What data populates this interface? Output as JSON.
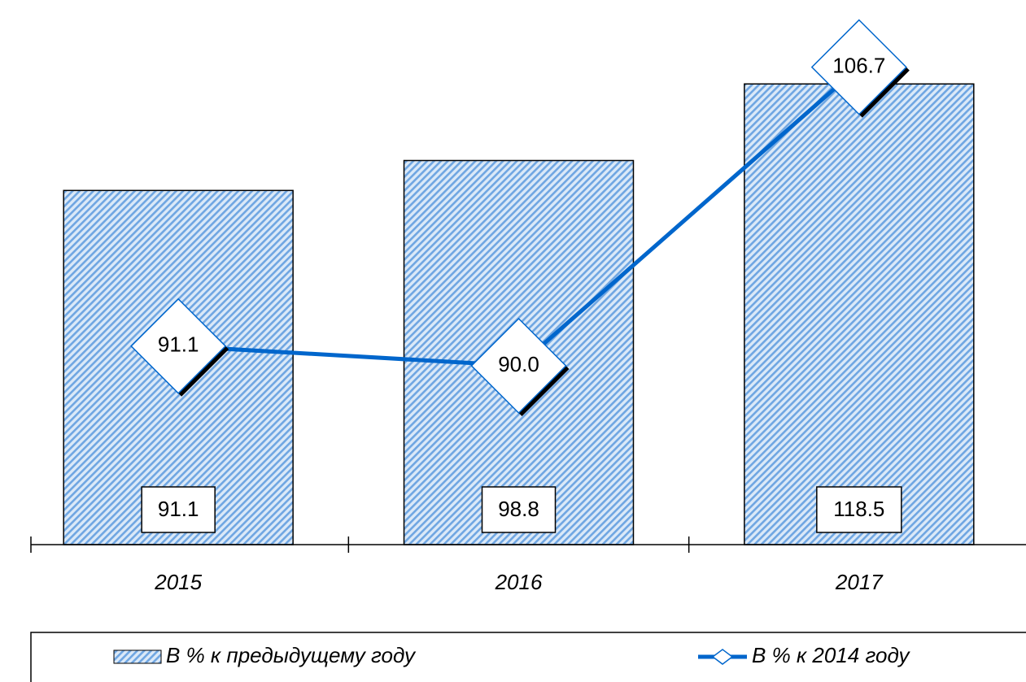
{
  "chart_data": {
    "type": "bar",
    "categories": [
      "2015",
      "2016",
      "2017"
    ],
    "series": [
      {
        "name": "В % к предыдущему году",
        "type": "bar",
        "color": "#4f8fd8",
        "values": [
          91.1,
          98.8,
          118.5
        ]
      },
      {
        "name": "В % к 2014 году",
        "type": "line",
        "axis": "y2",
        "color": "#0066cc",
        "values": [
          91.1,
          90.0,
          106.7
        ],
        "value_labels": [
          "91.1",
          "90.0",
          "106.7"
        ]
      }
    ],
    "ylim": [
      0,
      138
    ],
    "y2lim": [
      80,
      110
    ],
    "legend": "bottom"
  }
}
